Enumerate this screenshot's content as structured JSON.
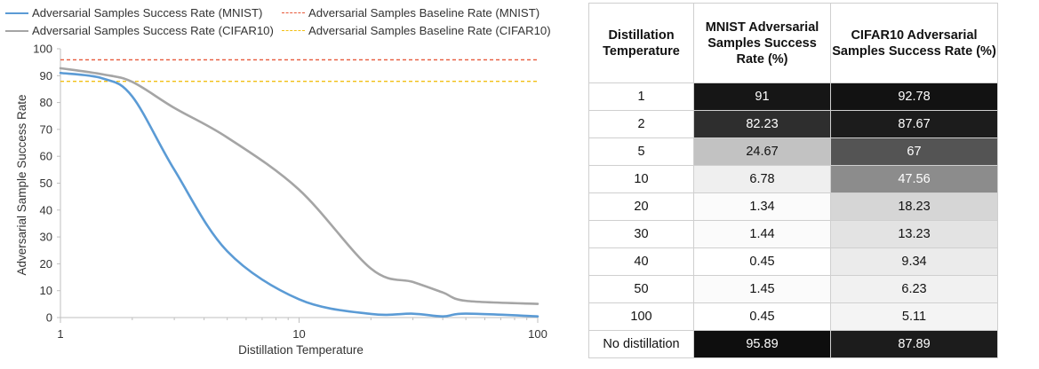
{
  "chart_data": {
    "type": "line",
    "xscale": "log",
    "xlabel": "Distillation Temperature",
    "ylabel": "Adversarial Sample Success Rate",
    "xlim": [
      1,
      100
    ],
    "ylim": [
      0,
      100
    ],
    "xticks": [
      "1",
      "10",
      "100"
    ],
    "yticks": [
      "0",
      "10",
      "20",
      "30",
      "40",
      "50",
      "60",
      "70",
      "80",
      "90",
      "100"
    ],
    "legend": [
      "Adversarial Samples Success Rate (MNIST)",
      "Adversarial Samples Baseline Rate (MNIST)",
      "Adversarial Samples Success Rate (CIFAR10)",
      "Adversarial Samples Baseline Rate (CIFAR10)"
    ],
    "series": [
      {
        "name": "Adversarial Samples Success Rate (MNIST)",
        "color": "#5b9bd5",
        "style": "solid",
        "x": [
          1,
          1.5,
          2,
          3,
          5,
          10,
          20,
          30,
          40,
          50,
          100
        ],
        "y": [
          91,
          89,
          82.23,
          55,
          24.67,
          6.78,
          1.34,
          1.44,
          0.45,
          1.45,
          0.45
        ]
      },
      {
        "name": "Adversarial Samples Baseline Rate (MNIST)",
        "color": "#e8593a",
        "style": "dashed",
        "x": [
          1,
          100
        ],
        "y": [
          95.89,
          95.89
        ]
      },
      {
        "name": "Adversarial Samples Success Rate (CIFAR10)",
        "color": "#a5a5a5",
        "style": "solid",
        "x": [
          1,
          1.5,
          2,
          3,
          5,
          10,
          20,
          30,
          40,
          50,
          100
        ],
        "y": [
          92.78,
          90.5,
          87.67,
          78,
          67,
          47.56,
          18.23,
          13.23,
          9.34,
          6.23,
          5.11
        ]
      },
      {
        "name": "Adversarial Samples Baseline Rate (CIFAR10)",
        "color": "#f2c014",
        "style": "dashed",
        "x": [
          1,
          100
        ],
        "y": [
          87.89,
          87.89
        ]
      }
    ]
  },
  "table": {
    "headers": [
      "Distillation Temperature",
      "MNIST Adversarial Samples Success Rate (%)",
      "CIFAR10 Adversarial Samples Success Rate (%)"
    ],
    "rows": [
      {
        "temp": "1",
        "mnist": "91",
        "cifar": "92.78",
        "mnist_bg": "#161616",
        "mnist_fg": "#ffffff",
        "cifar_bg": "#121212",
        "cifar_fg": "#ffffff"
      },
      {
        "temp": "2",
        "mnist": "82.23",
        "cifar": "87.67",
        "mnist_bg": "#2e2e2e",
        "mnist_fg": "#ffffff",
        "cifar_bg": "#1c1c1c",
        "cifar_fg": "#ffffff"
      },
      {
        "temp": "5",
        "mnist": "24.67",
        "cifar": "67",
        "mnist_bg": "#c2c2c2",
        "mnist_fg": "#111111",
        "cifar_bg": "#545454",
        "cifar_fg": "#ffffff"
      },
      {
        "temp": "10",
        "mnist": "6.78",
        "cifar": "47.56",
        "mnist_bg": "#efefef",
        "mnist_fg": "#111111",
        "cifar_bg": "#8c8c8c",
        "cifar_fg": "#ffffff"
      },
      {
        "temp": "20",
        "mnist": "1.34",
        "cifar": "18.23",
        "mnist_bg": "#fbfbfb",
        "mnist_fg": "#111111",
        "cifar_bg": "#d6d6d6",
        "cifar_fg": "#111111"
      },
      {
        "temp": "30",
        "mnist": "1.44",
        "cifar": "13.23",
        "mnist_bg": "#fbfbfb",
        "mnist_fg": "#111111",
        "cifar_bg": "#e3e3e3",
        "cifar_fg": "#111111"
      },
      {
        "temp": "40",
        "mnist": "0.45",
        "cifar": "9.34",
        "mnist_bg": "#ffffff",
        "mnist_fg": "#111111",
        "cifar_bg": "#ebebeb",
        "cifar_fg": "#111111"
      },
      {
        "temp": "50",
        "mnist": "1.45",
        "cifar": "6.23",
        "mnist_bg": "#fbfbfb",
        "mnist_fg": "#111111",
        "cifar_bg": "#f1f1f1",
        "cifar_fg": "#111111"
      },
      {
        "temp": "100",
        "mnist": "0.45",
        "cifar": "5.11",
        "mnist_bg": "#ffffff",
        "mnist_fg": "#111111",
        "cifar_bg": "#f4f4f4",
        "cifar_fg": "#111111"
      },
      {
        "temp": "No distillation",
        "mnist": "95.89",
        "cifar": "87.89",
        "mnist_bg": "#0e0e0e",
        "mnist_fg": "#ffffff",
        "cifar_bg": "#1c1c1c",
        "cifar_fg": "#ffffff"
      }
    ]
  }
}
